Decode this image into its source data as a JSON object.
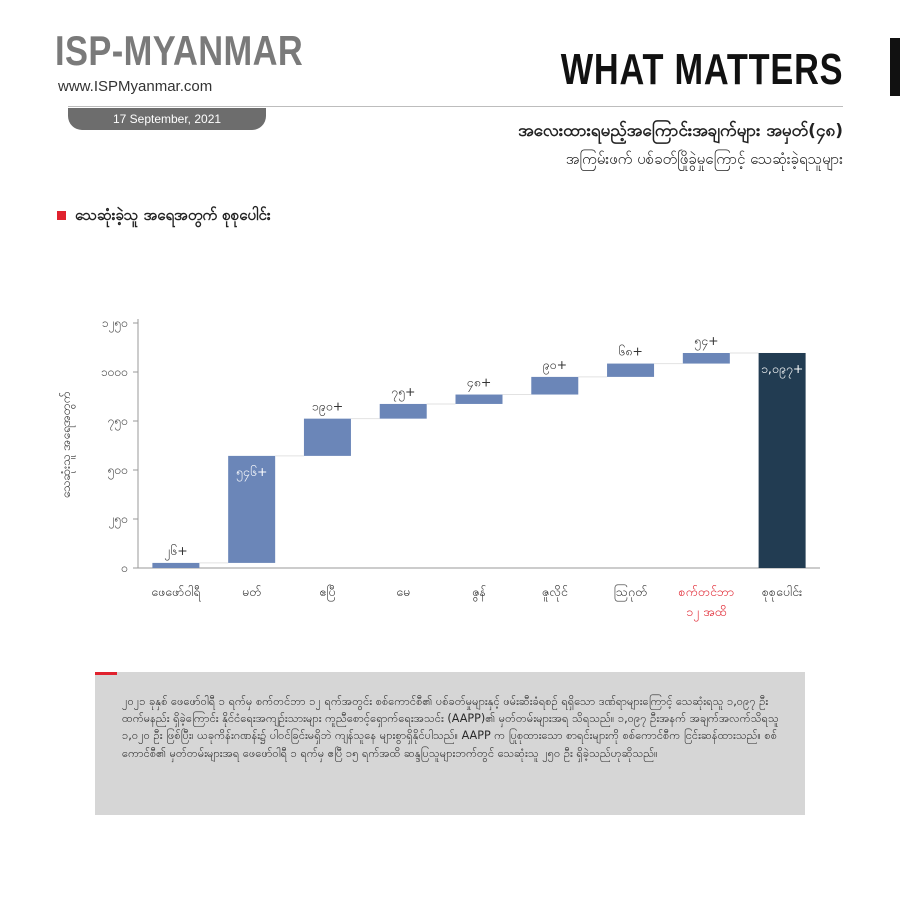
{
  "header": {
    "logo": "ISP-MYANMAR",
    "site": "www.ISPMyanmar.com",
    "date": "17 September, 2021",
    "series_tag": "WHAT MATTERS",
    "title": "အလေးထားရမည့်အကြောင်းအချက်များ အမှတ်(၄၈)",
    "subtitle": "အကြမ်းဖက် ပစ်ခတ်ဖြိုခွဲမှုကြောင့် သေဆုံးခဲ့ရသူများ"
  },
  "section_label": "သေဆုံးခဲ့သူ အရေအတွက် စုစုပေါင်း",
  "colors": {
    "bar": "#6b86b8",
    "total_bar": "#223c52",
    "accent_red": "#e0222e",
    "note_bg": "#d6d6d6"
  },
  "chart_data": {
    "type": "bar",
    "subtype": "waterfall",
    "ylabel": "သေဆုံးသူ အရေအတွက်",
    "ylim": [
      0,
      1250
    ],
    "yticks": [
      0,
      250,
      500,
      750,
      1000,
      1250
    ],
    "ytick_labels": [
      "၀",
      "၂၅၀",
      "၅၀၀",
      "၇၅၀",
      "၁၀၀၀",
      "၁၂၅၀"
    ],
    "categories": [
      "ဖေဖော်ဝါရီ",
      "မတ်",
      "ဧပြီ",
      "မေ",
      "ဇွန်",
      "ဇူလိုင်",
      "သြဂုတ်",
      "စက်တင်ဘာ\n၁၂ အထိ",
      "စုစုပေါင်း"
    ],
    "highlight_categories": [
      7
    ],
    "values": [
      26,
      546,
      190,
      75,
      48,
      90,
      68,
      54,
      1097
    ],
    "is_total": [
      false,
      false,
      false,
      false,
      false,
      false,
      false,
      false,
      true
    ],
    "data_labels": [
      "၂၆+",
      "၅၄၆+",
      "၁၉၀+",
      "၇၅+",
      "၄၈+",
      "၉၀+",
      "၆၈+",
      "၅၄+",
      "၁,၀၉၇+"
    ],
    "grid": false
  },
  "note": "၂၀၂၁ ခုနှစ် ဖေဖော်ဝါရီ ၁ ရက်မှ စက်တင်ဘာ ၁၂ ရက်အတွင်း စစ်ကောင်စီ၏ ပစ်ခတ်မှုများနှင့် ဖမ်းဆီးခံရစဉ် ရရှိသော ဒဏ်ရာများကြောင့် သေဆုံးရသူ ၁,၀၉၇ ဦးထက်မနည်း ရှိခဲ့ကြောင်း နိုင်ငံရေးအကျဉ်းသားများ ကူညီစောင့်ရှောက်ရေးအသင်း (AAPP)၏ မှတ်တမ်းများအရ သိရသည်။ ၁,၀၉၇ ဦးအနက် အချက်အလက်သိရသူ ၁,၀၂၀ ဦး ဖြစ်ပြီး၊ ယခုကိန်းဂဏန်း၌ ပါဝင်ခြင်းမရှိဘဲ ကျန်သူနေ များစွာရှိနိုင်ပါသည်။ AAPP က ပြုစုထားသော စာရင်းများကို စစ်ကောင်စီက ငြင်းဆန်ထားသည်။ စစ်ကောင်စီ၏ မှတ်တမ်းများအရ ဖေဖော်ဝါရီ ၁ ရက်မှ ဧပြီ ၁၅ ရက်အထိ ဆန္ဒပြသူများဘက်တွင် သေဆုံးသူ ၂၅၀ ဦး ရှိခဲ့သည်ဟုဆိုသည်။"
}
